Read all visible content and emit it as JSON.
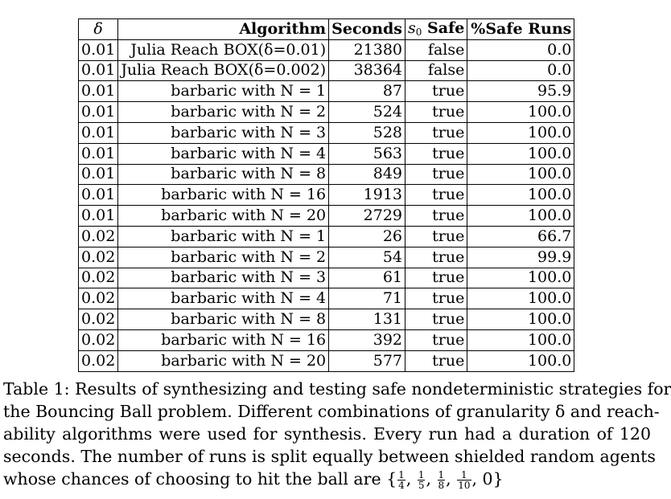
{
  "table": {
    "headers": {
      "delta": "δ",
      "algorithm": "Algorithm",
      "seconds": "Seconds",
      "safe_prefix": "s",
      "safe_sub": "0",
      "safe_suffix": "Safe",
      "runs": "%Safe Runs"
    },
    "rows": [
      {
        "delta": "0.01",
        "algorithm": "Julia Reach BOX(δ=0.01)",
        "seconds": "21380",
        "safe": "false",
        "runs": "0.0"
      },
      {
        "delta": "0.01",
        "algorithm": "Julia Reach BOX(δ=0.002)",
        "seconds": "38364",
        "safe": "false",
        "runs": "0.0"
      },
      {
        "delta": "0.01",
        "algorithm": "barbaric with N = 1",
        "seconds": "87",
        "safe": "true",
        "runs": "95.9"
      },
      {
        "delta": "0.01",
        "algorithm": "barbaric with N = 2",
        "seconds": "524",
        "safe": "true",
        "runs": "100.0"
      },
      {
        "delta": "0.01",
        "algorithm": "barbaric with N = 3",
        "seconds": "528",
        "safe": "true",
        "runs": "100.0"
      },
      {
        "delta": "0.01",
        "algorithm": "barbaric with N = 4",
        "seconds": "563",
        "safe": "true",
        "runs": "100.0"
      },
      {
        "delta": "0.01",
        "algorithm": "barbaric with N = 8",
        "seconds": "849",
        "safe": "true",
        "runs": "100.0"
      },
      {
        "delta": "0.01",
        "algorithm": "barbaric with N = 16",
        "seconds": "1913",
        "safe": "true",
        "runs": "100.0"
      },
      {
        "delta": "0.01",
        "algorithm": "barbaric with N = 20",
        "seconds": "2729",
        "safe": "true",
        "runs": "100.0"
      },
      {
        "delta": "0.02",
        "algorithm": "barbaric with N = 1",
        "seconds": "26",
        "safe": "true",
        "runs": "66.7"
      },
      {
        "delta": "0.02",
        "algorithm": "barbaric with N = 2",
        "seconds": "54",
        "safe": "true",
        "runs": "99.9"
      },
      {
        "delta": "0.02",
        "algorithm": "barbaric with N = 3",
        "seconds": "61",
        "safe": "true",
        "runs": "100.0"
      },
      {
        "delta": "0.02",
        "algorithm": "barbaric with N = 4",
        "seconds": "71",
        "safe": "true",
        "runs": "100.0"
      },
      {
        "delta": "0.02",
        "algorithm": "barbaric with N = 8",
        "seconds": "131",
        "safe": "true",
        "runs": "100.0"
      },
      {
        "delta": "0.02",
        "algorithm": "barbaric with N = 16",
        "seconds": "392",
        "safe": "true",
        "runs": "100.0"
      },
      {
        "delta": "0.02",
        "algorithm": "barbaric with N = 20",
        "seconds": "577",
        "safe": "true",
        "runs": "100.0"
      }
    ]
  },
  "caption": {
    "lines": [
      "Table 1: Results of synthesizing and testing safe nondeterministic strategies for",
      "the Bouncing Ball problem. Different combinations of granularity δ and reach-",
      "ability algorithms were used for synthesis. Every run had a duration of 120",
      "seconds. The number of runs is split equally between shielded random agents"
    ],
    "last_line_text": "whose chances of choosing to hit the ball are",
    "set_open": "{",
    "fractions": [
      {
        "num": "1",
        "den": "4"
      },
      {
        "num": "1",
        "den": "5"
      },
      {
        "num": "1",
        "den": "8"
      },
      {
        "num": "1",
        "den": "10"
      }
    ],
    "set_tail": "0}"
  }
}
